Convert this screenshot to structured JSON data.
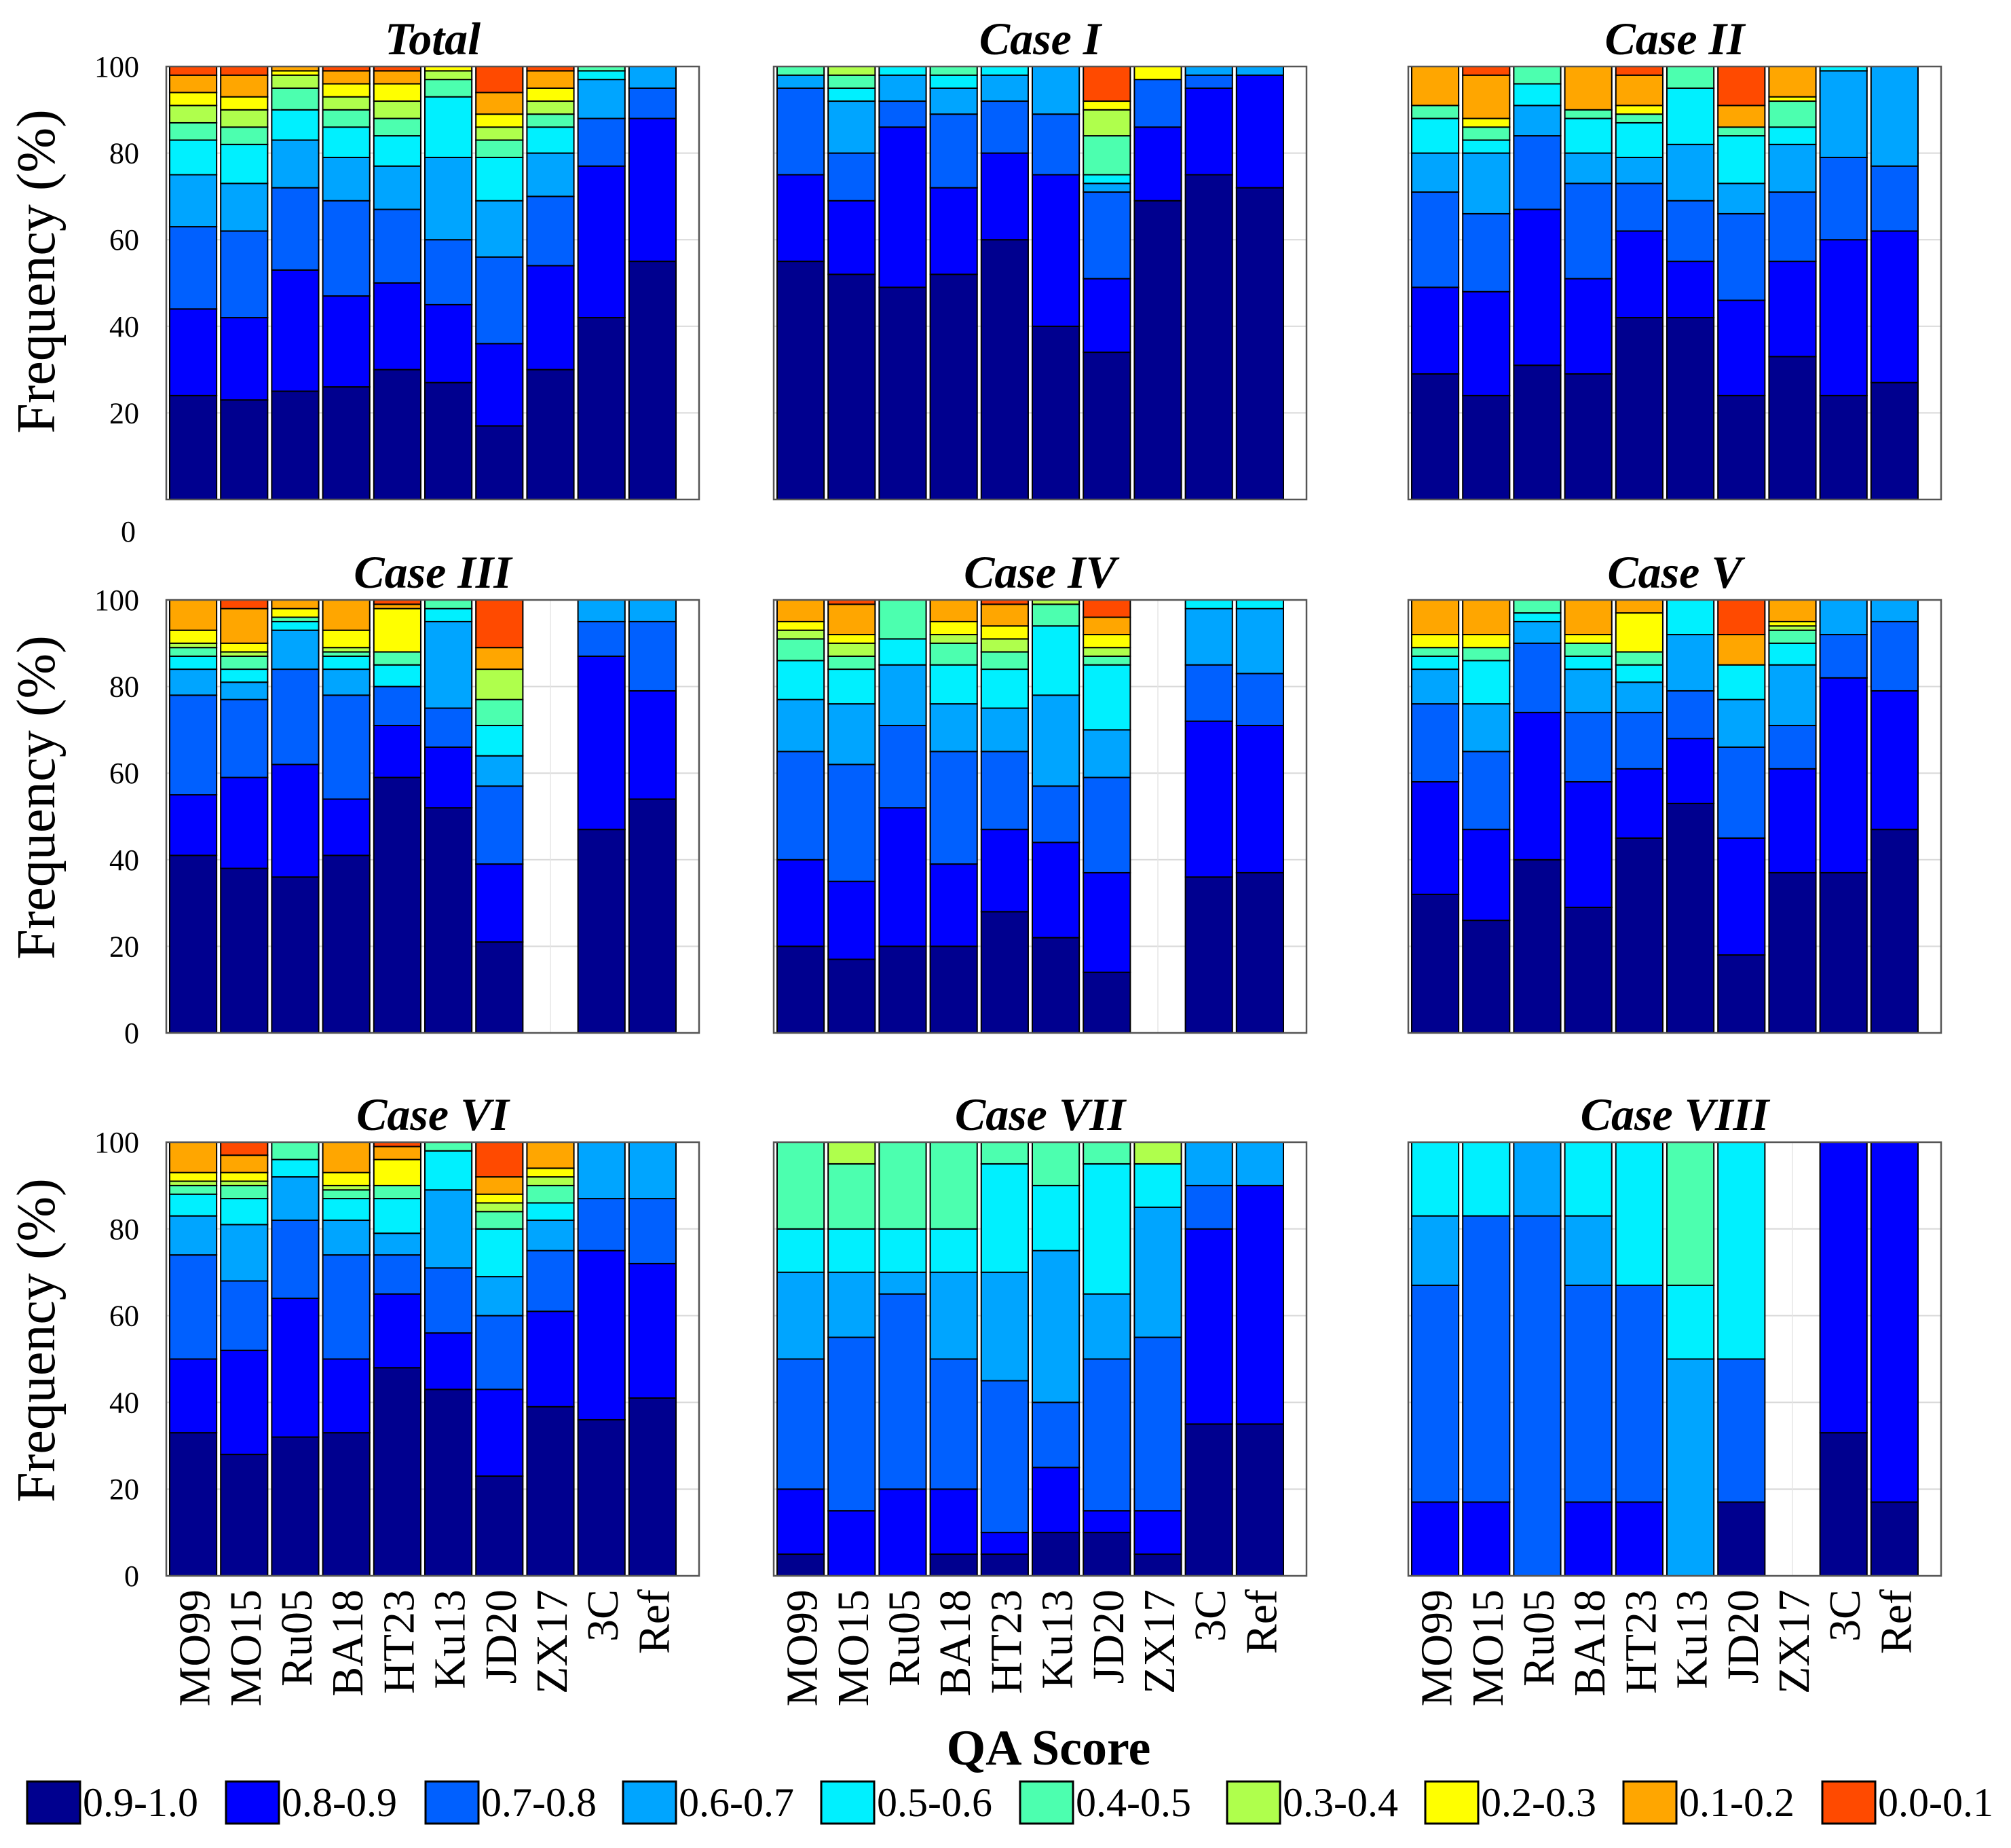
{
  "chart_data": {
    "type": "bar",
    "stacked": true,
    "xlabel": "QA Score",
    "ylabel": "Frequency (%)",
    "ylim": [
      0,
      100
    ],
    "yticks": [
      0,
      20,
      40,
      60,
      80,
      100
    ],
    "categories": [
      "MO99",
      "MO15",
      "Ru05",
      "BA18",
      "HT23",
      "Ku13",
      "JD20",
      "ZX17",
      "3C",
      "Ref"
    ],
    "bins": [
      {
        "name": "0.9-1.0",
        "color": "#00008F"
      },
      {
        "name": "0.8-0.9",
        "color": "#0000FF"
      },
      {
        "name": "0.7-0.8",
        "color": "#0060FF"
      },
      {
        "name": "0.6-0.7",
        "color": "#00A5FF"
      },
      {
        "name": "0.5-0.6",
        "color": "#00F0FF"
      },
      {
        "name": "0.4-0.5",
        "color": "#4CFFAF"
      },
      {
        "name": "0.3-0.4",
        "color": "#AFFF4C"
      },
      {
        "name": "0.2-0.3",
        "color": "#FFFF00"
      },
      {
        "name": "0.1-0.2",
        "color": "#FFA600"
      },
      {
        "name": "0.0-0.1",
        "color": "#FF4A00"
      }
    ],
    "legend_position": "bottom",
    "grid": true,
    "panels": [
      {
        "title": "Total",
        "values": [
          [
            24,
            20,
            19,
            12,
            8,
            4,
            4,
            3,
            4,
            2
          ],
          [
            23,
            19,
            20,
            11,
            9,
            4,
            4,
            3,
            5,
            2
          ],
          [
            25,
            28,
            19,
            11,
            7,
            5,
            3,
            1,
            1,
            0
          ],
          [
            26,
            21,
            22,
            10,
            7,
            4,
            3,
            3,
            3,
            1
          ],
          [
            30,
            20,
            17,
            10,
            7,
            4,
            4,
            4,
            3,
            1
          ],
          [
            27,
            18,
            15,
            19,
            14,
            4,
            2,
            1,
            0,
            0
          ],
          [
            17,
            19,
            20,
            13,
            10,
            4,
            3,
            3,
            5,
            6
          ],
          [
            30,
            24,
            16,
            10,
            6,
            3,
            3,
            3,
            4,
            1
          ],
          [
            42,
            35,
            11,
            9,
            2,
            1,
            0,
            0,
            0,
            0
          ],
          [
            55,
            33,
            7,
            5,
            0,
            0,
            0,
            0,
            0,
            0
          ]
        ]
      },
      {
        "title": "Case I",
        "values": [
          [
            55,
            20,
            20,
            3,
            0,
            2,
            0,
            0,
            0,
            0
          ],
          [
            52,
            17,
            11,
            12,
            3,
            3,
            2,
            0,
            0,
            0
          ],
          [
            49,
            37,
            6,
            6,
            2,
            0,
            0,
            0,
            0,
            0
          ],
          [
            52,
            20,
            17,
            6,
            3,
            2,
            0,
            0,
            0,
            0
          ],
          [
            60,
            20,
            12,
            6,
            2,
            0,
            0,
            0,
            0,
            0
          ],
          [
            40,
            35,
            14,
            11,
            0,
            0,
            0,
            0,
            0,
            0
          ],
          [
            34,
            17,
            20,
            2,
            2,
            9,
            6,
            2,
            0,
            8
          ],
          [
            69,
            17,
            11,
            0,
            0,
            0,
            0,
            3,
            0,
            0
          ],
          [
            75,
            20,
            3,
            2,
            0,
            0,
            0,
            0,
            0,
            0
          ],
          [
            72,
            26,
            0,
            2,
            0,
            0,
            0,
            0,
            0,
            0
          ]
        ]
      },
      {
        "title": "Case II",
        "values": [
          [
            29,
            20,
            22,
            9,
            8,
            3,
            0,
            0,
            9,
            0
          ],
          [
            24,
            24,
            18,
            14,
            3,
            3,
            0,
            2,
            10,
            2
          ],
          [
            31,
            36,
            17,
            7,
            5,
            4,
            0,
            0,
            0,
            0
          ],
          [
            29,
            22,
            22,
            7,
            8,
            2,
            0,
            0,
            10,
            0
          ],
          [
            42,
            20,
            11,
            6,
            8,
            2,
            0,
            2,
            7,
            2
          ],
          [
            42,
            13,
            14,
            13,
            13,
            5,
            0,
            0,
            0,
            0
          ],
          [
            24,
            22,
            20,
            7,
            11,
            2,
            0,
            0,
            5,
            9
          ],
          [
            33,
            22,
            16,
            11,
            4,
            6,
            0,
            1,
            7,
            0
          ],
          [
            24,
            36,
            19,
            20,
            1,
            0,
            0,
            0,
            0,
            0
          ],
          [
            27,
            35,
            15,
            23,
            0,
            0,
            0,
            0,
            0,
            0
          ]
        ]
      },
      {
        "title": "Case III",
        "values": [
          [
            41,
            14,
            23,
            6,
            3,
            2,
            1,
            3,
            7,
            0
          ],
          [
            38,
            21,
            18,
            4,
            3,
            3,
            1,
            2,
            8,
            2
          ],
          [
            36,
            26,
            22,
            9,
            2,
            1,
            0,
            2,
            2,
            0
          ],
          [
            41,
            13,
            24,
            6,
            3,
            1,
            1,
            4,
            7,
            0
          ],
          [
            59,
            12,
            9,
            0,
            5,
            3,
            0,
            10,
            1,
            1
          ],
          [
            52,
            14,
            9,
            20,
            3,
            2,
            0,
            0,
            0,
            0
          ],
          [
            21,
            18,
            18,
            7,
            7,
            6,
            7,
            0,
            5,
            11
          ],
          [
            0,
            0,
            0,
            0,
            0,
            0,
            0,
            0,
            0,
            0
          ],
          [
            47,
            40,
            8,
            5,
            0,
            0,
            0,
            0,
            0,
            0
          ],
          [
            54,
            25,
            16,
            5,
            0,
            0,
            0,
            0,
            0,
            0
          ]
        ]
      },
      {
        "title": "Case IV",
        "values": [
          [
            20,
            20,
            25,
            12,
            9,
            5,
            2,
            2,
            5,
            0
          ],
          [
            17,
            18,
            27,
            14,
            8,
            3,
            3,
            2,
            7,
            1
          ],
          [
            20,
            32,
            19,
            14,
            6,
            9,
            0,
            0,
            0,
            0
          ],
          [
            20,
            19,
            26,
            11,
            9,
            5,
            2,
            3,
            5,
            0
          ],
          [
            28,
            19,
            18,
            10,
            9,
            4,
            3,
            3,
            5,
            1
          ],
          [
            22,
            22,
            13,
            21,
            16,
            5,
            1,
            0,
            0,
            0
          ],
          [
            14,
            23,
            22,
            11,
            15,
            2,
            2,
            3,
            4,
            4
          ],
          [
            0,
            0,
            0,
            0,
            0,
            0,
            0,
            0,
            0,
            0
          ],
          [
            36,
            36,
            13,
            13,
            2,
            0,
            0,
            0,
            0,
            0
          ],
          [
            37,
            34,
            12,
            15,
            2,
            0,
            0,
            0,
            0,
            0
          ]
        ]
      },
      {
        "title": "Case V",
        "values": [
          [
            32,
            26,
            18,
            8,
            3,
            2,
            0,
            3,
            8,
            0
          ],
          [
            26,
            21,
            18,
            11,
            10,
            3,
            0,
            3,
            8,
            0
          ],
          [
            40,
            34,
            16,
            5,
            2,
            3,
            0,
            0,
            0,
            0
          ],
          [
            29,
            29,
            16,
            10,
            3,
            3,
            0,
            2,
            8,
            0
          ],
          [
            45,
            16,
            13,
            7,
            4,
            3,
            0,
            9,
            3,
            0
          ],
          [
            53,
            15,
            11,
            13,
            8,
            0,
            0,
            0,
            0,
            0
          ],
          [
            18,
            27,
            21,
            11,
            8,
            0,
            0,
            0,
            7,
            8
          ],
          [
            37,
            24,
            10,
            14,
            5,
            3,
            1,
            1,
            5,
            0
          ],
          [
            37,
            45,
            10,
            8,
            0,
            0,
            0,
            0,
            0,
            0
          ],
          [
            47,
            32,
            16,
            5,
            0,
            0,
            0,
            0,
            0,
            0
          ]
        ]
      },
      {
        "title": "Case VI",
        "values": [
          [
            33,
            17,
            24,
            9,
            5,
            2,
            1,
            2,
            7,
            0
          ],
          [
            28,
            24,
            16,
            13,
            6,
            3,
            1,
            2,
            4,
            3
          ],
          [
            32,
            32,
            18,
            10,
            4,
            4,
            0,
            0,
            0,
            0
          ],
          [
            33,
            17,
            24,
            8,
            5,
            2,
            1,
            3,
            7,
            0
          ],
          [
            48,
            17,
            9,
            5,
            8,
            3,
            0,
            6,
            3,
            1
          ],
          [
            43,
            13,
            15,
            18,
            9,
            2,
            0,
            0,
            0,
            0
          ],
          [
            23,
            20,
            17,
            9,
            11,
            4,
            2,
            2,
            4,
            8
          ],
          [
            39,
            22,
            14,
            7,
            4,
            4,
            2,
            2,
            6,
            0
          ],
          [
            36,
            39,
            12,
            13,
            0,
            0,
            0,
            0,
            0,
            0
          ],
          [
            41,
            31,
            15,
            13,
            0,
            0,
            0,
            0,
            0,
            0
          ]
        ]
      },
      {
        "title": "Case VII",
        "values": [
          [
            5,
            15,
            30,
            20,
            10,
            20,
            0,
            0,
            0,
            0
          ],
          [
            0,
            15,
            40,
            15,
            10,
            15,
            5,
            0,
            0,
            0
          ],
          [
            0,
            20,
            45,
            5,
            10,
            20,
            0,
            0,
            0,
            0
          ],
          [
            5,
            15,
            30,
            20,
            10,
            20,
            0,
            0,
            0,
            0
          ],
          [
            5,
            5,
            35,
            25,
            25,
            5,
            0,
            0,
            0,
            0
          ],
          [
            10,
            15,
            15,
            35,
            15,
            10,
            0,
            0,
            0,
            0
          ],
          [
            10,
            5,
            35,
            15,
            30,
            5,
            0,
            0,
            0,
            0
          ],
          [
            5,
            10,
            40,
            30,
            10,
            0,
            5,
            0,
            0,
            0
          ],
          [
            35,
            45,
            10,
            10,
            0,
            0,
            0,
            0,
            0,
            0
          ],
          [
            35,
            55,
            0,
            10,
            0,
            0,
            0,
            0,
            0,
            0
          ]
        ]
      },
      {
        "title": "Case VIII",
        "values": [
          [
            0,
            17,
            50,
            16,
            17,
            0,
            0,
            0,
            0,
            0
          ],
          [
            0,
            17,
            66,
            0,
            17,
            0,
            0,
            0,
            0,
            0
          ],
          [
            0,
            0,
            83,
            17,
            0,
            0,
            0,
            0,
            0,
            0
          ],
          [
            0,
            17,
            50,
            16,
            17,
            0,
            0,
            0,
            0,
            0
          ],
          [
            0,
            17,
            50,
            0,
            33,
            0,
            0,
            0,
            0,
            0
          ],
          [
            0,
            0,
            0,
            50,
            17,
            33,
            0,
            0,
            0,
            0
          ],
          [
            17,
            0,
            33,
            0,
            50,
            0,
            0,
            0,
            0,
            0
          ],
          [
            0,
            0,
            0,
            0,
            0,
            0,
            0,
            0,
            0,
            0
          ],
          [
            33,
            67,
            0,
            0,
            0,
            0,
            0,
            0,
            0,
            0
          ],
          [
            17,
            83,
            0,
            0,
            0,
            0,
            0,
            0,
            0,
            0
          ]
        ]
      }
    ]
  }
}
